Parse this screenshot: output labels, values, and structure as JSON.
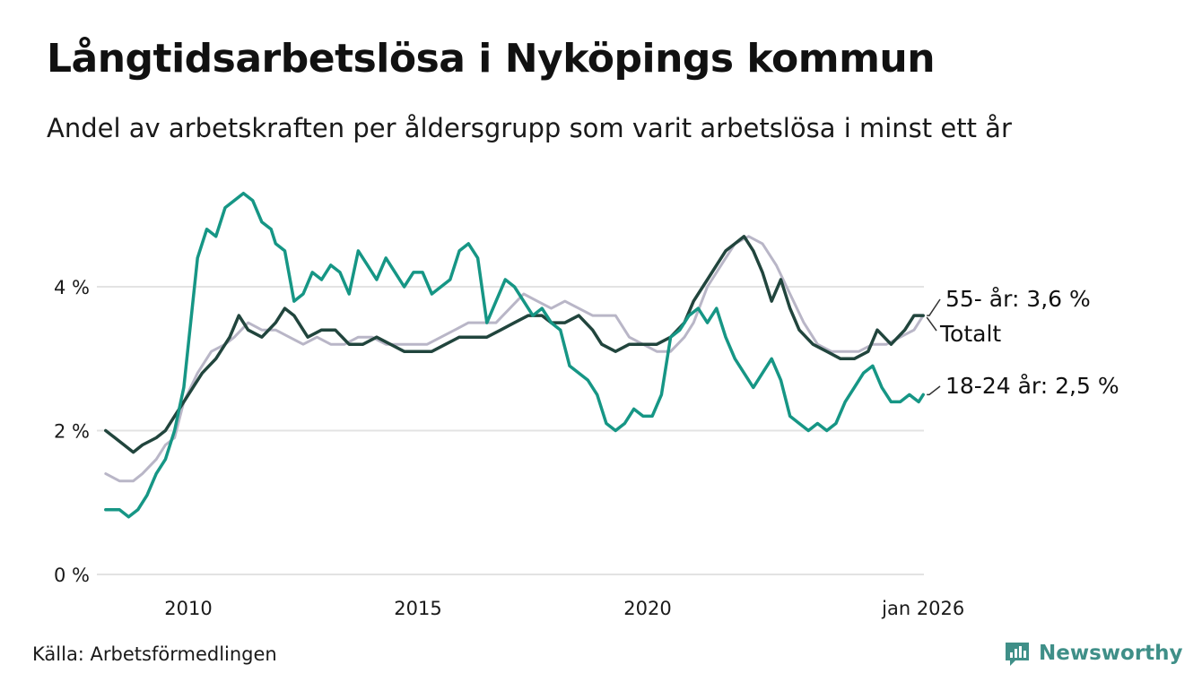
{
  "title": "Långtidsarbetslösa i Nyköpings kommun",
  "subtitle": "Andel av arbetskraften per åldersgrupp som varit arbetslösa i minst ett år",
  "source": "Källa: Arbetsförmedlingen",
  "brand": "Newsworthy",
  "colors": {
    "youth": "#169685",
    "total": "#21453d",
    "older": "#b9b6c7",
    "grid": "#e3e3e3",
    "brand": "#3f8f88"
  },
  "chart_data": {
    "type": "line",
    "title": "Långtidsarbetslösa i Nyköpings kommun",
    "xlabel": "",
    "ylabel": "",
    "xlim": [
      2008.2,
      2026.1
    ],
    "ylim": [
      0,
      5.5
    ],
    "grid": true,
    "y_ticks": [
      {
        "value": 0,
        "label": "0 %"
      },
      {
        "value": 2,
        "label": "2 %"
      },
      {
        "value": 4,
        "label": "4 %"
      }
    ],
    "x_ticks": [
      {
        "value": 2010,
        "label": "2010"
      },
      {
        "value": 2015,
        "label": "2015"
      },
      {
        "value": 2020,
        "label": "2020"
      },
      {
        "value": 2026,
        "label": "jan 2026"
      }
    ],
    "series": [
      {
        "key": "older",
        "name": "55- år",
        "end_label": "55- år: 3,6 %",
        "x": [
          2008.2,
          2008.5,
          2008.8,
          2009.0,
          2009.3,
          2009.5,
          2009.7,
          2009.9,
          2010.2,
          2010.5,
          2010.8,
          2011.0,
          2011.3,
          2011.6,
          2011.9,
          2012.2,
          2012.5,
          2012.8,
          2013.1,
          2013.4,
          2013.7,
          2014.0,
          2014.3,
          2014.6,
          2014.9,
          2015.2,
          2015.5,
          2015.8,
          2016.1,
          2016.4,
          2016.7,
          2017.0,
          2017.3,
          2017.6,
          2017.9,
          2018.2,
          2018.5,
          2018.8,
          2019.0,
          2019.3,
          2019.6,
          2019.9,
          2020.2,
          2020.5,
          2020.8,
          2021.0,
          2021.3,
          2021.6,
          2021.9,
          2022.2,
          2022.5,
          2022.8,
          2023.1,
          2023.4,
          2023.7,
          2024.0,
          2024.3,
          2024.6,
          2024.9,
          2025.2,
          2025.5,
          2025.8,
          2026.0
        ],
        "values": [
          1.4,
          1.3,
          1.3,
          1.4,
          1.6,
          1.8,
          1.9,
          2.4,
          2.8,
          3.1,
          3.2,
          3.3,
          3.5,
          3.4,
          3.4,
          3.3,
          3.2,
          3.3,
          3.2,
          3.2,
          3.3,
          3.3,
          3.2,
          3.2,
          3.2,
          3.2,
          3.3,
          3.4,
          3.5,
          3.5,
          3.5,
          3.7,
          3.9,
          3.8,
          3.7,
          3.8,
          3.7,
          3.6,
          3.6,
          3.6,
          3.3,
          3.2,
          3.1,
          3.1,
          3.3,
          3.5,
          4.0,
          4.3,
          4.6,
          4.7,
          4.6,
          4.3,
          3.9,
          3.5,
          3.2,
          3.1,
          3.1,
          3.1,
          3.2,
          3.2,
          3.3,
          3.4,
          3.6
        ]
      },
      {
        "key": "total",
        "name": "Totalt",
        "end_label": "Totalt",
        "x": [
          2008.2,
          2008.4,
          2008.6,
          2008.8,
          2009.0,
          2009.3,
          2009.5,
          2009.7,
          2009.9,
          2010.1,
          2010.3,
          2010.6,
          2010.9,
          2011.1,
          2011.3,
          2011.6,
          2011.9,
          2012.1,
          2012.3,
          2012.6,
          2012.9,
          2013.2,
          2013.5,
          2013.8,
          2014.1,
          2014.4,
          2014.7,
          2015.0,
          2015.3,
          2015.6,
          2015.9,
          2016.2,
          2016.5,
          2016.8,
          2017.1,
          2017.4,
          2017.7,
          2017.9,
          2018.2,
          2018.5,
          2018.8,
          2019.0,
          2019.3,
          2019.6,
          2019.9,
          2020.2,
          2020.5,
          2020.8,
          2021.0,
          2021.3,
          2021.5,
          2021.7,
          2021.9,
          2022.1,
          2022.3,
          2022.5,
          2022.7,
          2022.9,
          2023.1,
          2023.3,
          2023.6,
          2023.9,
          2024.2,
          2024.5,
          2024.8,
          2025.0,
          2025.3,
          2025.6,
          2025.8,
          2026.0
        ],
        "values": [
          2.0,
          1.9,
          1.8,
          1.7,
          1.8,
          1.9,
          2.0,
          2.2,
          2.4,
          2.6,
          2.8,
          3.0,
          3.3,
          3.6,
          3.4,
          3.3,
          3.5,
          3.7,
          3.6,
          3.3,
          3.4,
          3.4,
          3.2,
          3.2,
          3.3,
          3.2,
          3.1,
          3.1,
          3.1,
          3.2,
          3.3,
          3.3,
          3.3,
          3.4,
          3.5,
          3.6,
          3.6,
          3.5,
          3.5,
          3.6,
          3.4,
          3.2,
          3.1,
          3.2,
          3.2,
          3.2,
          3.3,
          3.5,
          3.8,
          4.1,
          4.3,
          4.5,
          4.6,
          4.7,
          4.5,
          4.2,
          3.8,
          4.1,
          3.7,
          3.4,
          3.2,
          3.1,
          3.0,
          3.0,
          3.1,
          3.4,
          3.2,
          3.4,
          3.6,
          3.6
        ]
      },
      {
        "key": "youth",
        "name": "18-24 år",
        "end_label": "18-24 år: 2,5 %",
        "x": [
          2008.2,
          2008.5,
          2008.7,
          2008.9,
          2009.1,
          2009.3,
          2009.5,
          2009.7,
          2009.9,
          2010.0,
          2010.2,
          2010.4,
          2010.6,
          2010.8,
          2011.0,
          2011.2,
          2011.4,
          2011.6,
          2011.8,
          2011.9,
          2012.1,
          2012.3,
          2012.5,
          2012.7,
          2012.9,
          2013.1,
          2013.3,
          2013.5,
          2013.7,
          2013.9,
          2014.1,
          2014.3,
          2014.5,
          2014.7,
          2014.9,
          2015.1,
          2015.3,
          2015.5,
          2015.7,
          2015.9,
          2016.1,
          2016.3,
          2016.5,
          2016.7,
          2016.9,
          2017.1,
          2017.3,
          2017.5,
          2017.7,
          2017.9,
          2018.1,
          2018.3,
          2018.5,
          2018.7,
          2018.9,
          2019.1,
          2019.3,
          2019.5,
          2019.7,
          2019.9,
          2020.1,
          2020.3,
          2020.5,
          2020.7,
          2020.9,
          2021.1,
          2021.3,
          2021.5,
          2021.7,
          2021.9,
          2022.1,
          2022.3,
          2022.5,
          2022.7,
          2022.9,
          2023.1,
          2023.3,
          2023.5,
          2023.7,
          2023.9,
          2024.1,
          2024.3,
          2024.5,
          2024.7,
          2024.9,
          2025.1,
          2025.3,
          2025.5,
          2025.7,
          2025.9,
          2026.0
        ],
        "values": [
          0.9,
          0.9,
          0.8,
          0.9,
          1.1,
          1.4,
          1.6,
          2.0,
          2.6,
          3.2,
          4.4,
          4.8,
          4.7,
          5.1,
          5.2,
          5.3,
          5.2,
          4.9,
          4.8,
          4.6,
          4.5,
          3.8,
          3.9,
          4.2,
          4.1,
          4.3,
          4.2,
          3.9,
          4.5,
          4.3,
          4.1,
          4.4,
          4.2,
          4.0,
          4.2,
          4.2,
          3.9,
          4.0,
          4.1,
          4.5,
          4.6,
          4.4,
          3.5,
          3.8,
          4.1,
          4.0,
          3.8,
          3.6,
          3.7,
          3.5,
          3.4,
          2.9,
          2.8,
          2.7,
          2.5,
          2.1,
          2.0,
          2.1,
          2.3,
          2.2,
          2.2,
          2.5,
          3.3,
          3.4,
          3.6,
          3.7,
          3.5,
          3.7,
          3.3,
          3.0,
          2.8,
          2.6,
          2.8,
          3.0,
          2.7,
          2.2,
          2.1,
          2.0,
          2.1,
          2.0,
          2.1,
          2.4,
          2.6,
          2.8,
          2.9,
          2.6,
          2.4,
          2.4,
          2.5,
          2.4,
          2.5
        ]
      }
    ]
  }
}
